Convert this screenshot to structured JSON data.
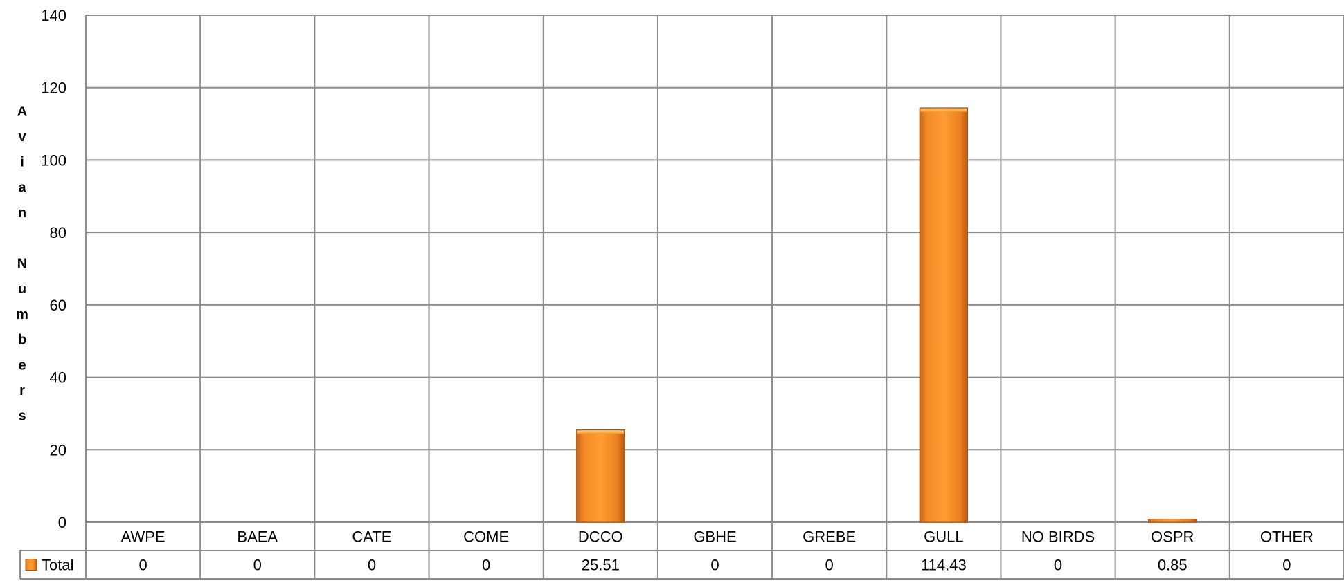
{
  "chart_data": {
    "type": "bar",
    "title": "",
    "xlabel": "",
    "ylabel": "Avian Numbers",
    "ylim": [
      0,
      140
    ],
    "yticks": [
      0,
      20,
      40,
      60,
      80,
      100,
      120,
      140
    ],
    "grid": true,
    "categories": [
      "AWPE",
      "BAEA",
      "CATE",
      "COME",
      "DCCO",
      "GBHE",
      "GREBE",
      "GULL",
      "NO BIRDS",
      "OSPR",
      "OTHER"
    ],
    "series": [
      {
        "name": "Total",
        "values": [
          0,
          0,
          0,
          0,
          25.51,
          0,
          0,
          114.43,
          0,
          0.85,
          0
        ],
        "value_labels": [
          "0",
          "0",
          "0",
          "0",
          "25.51",
          "0",
          "0",
          "114.43",
          "0",
          "0.85",
          "0"
        ],
        "color": "#f7941d"
      }
    ],
    "legend": "data-table-left"
  }
}
